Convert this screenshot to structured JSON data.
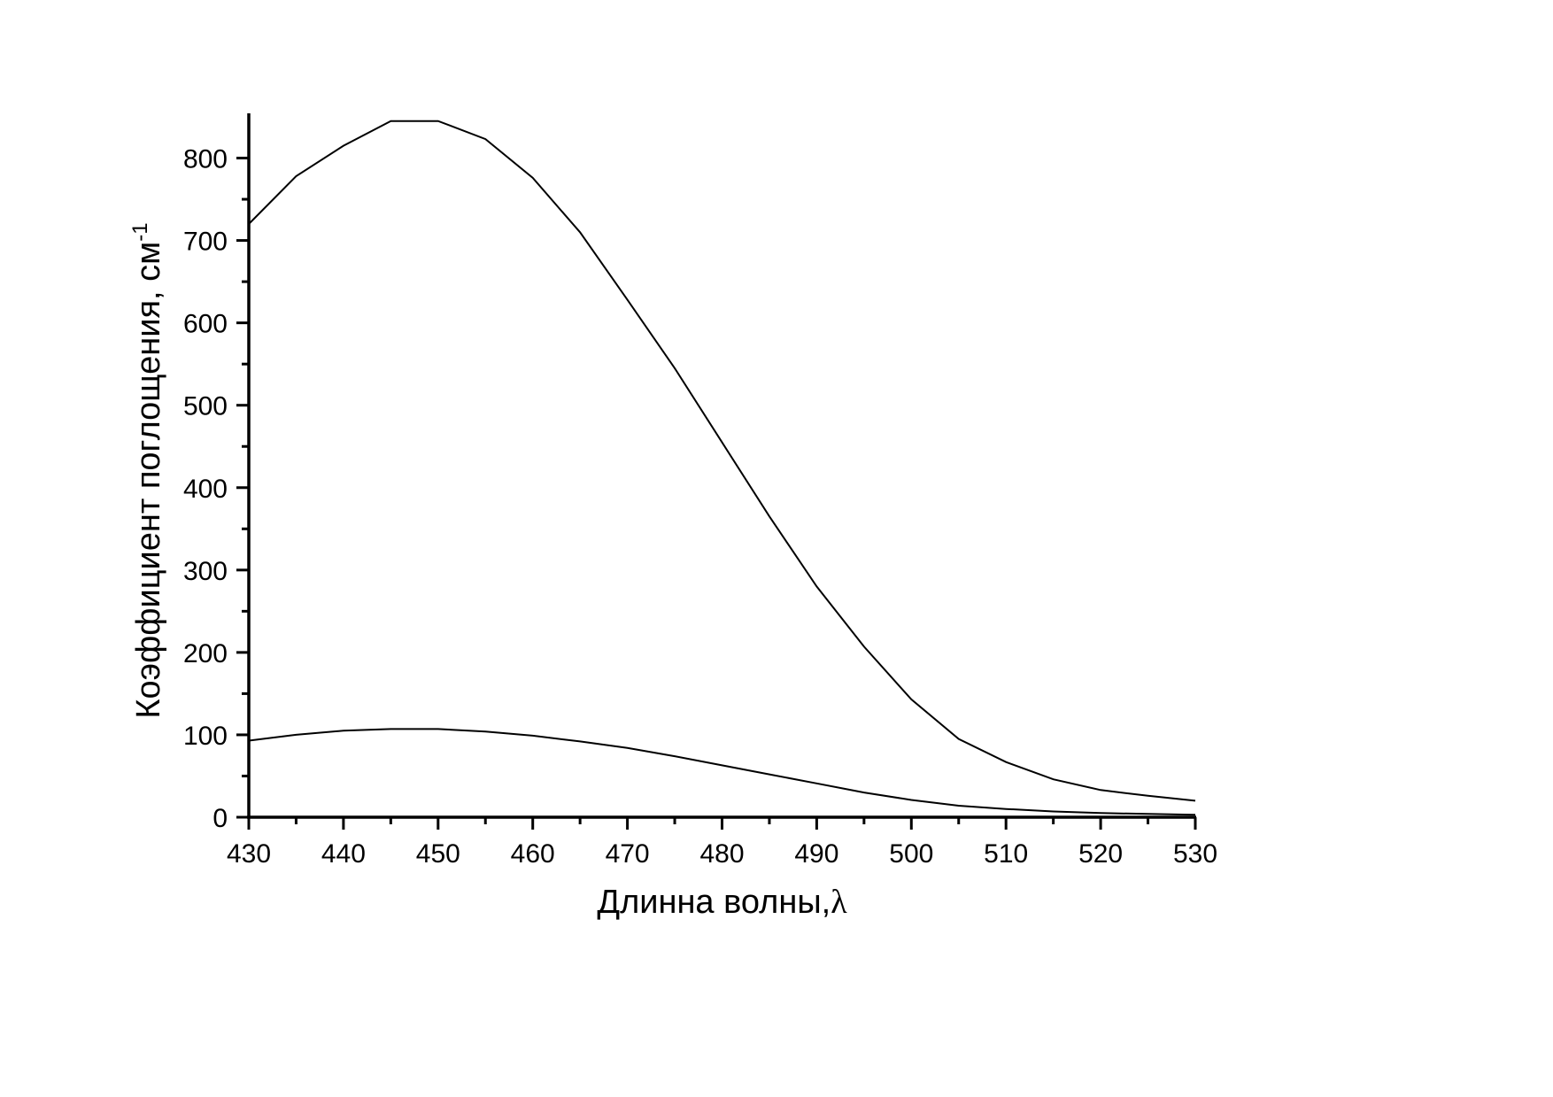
{
  "chart_data": {
    "type": "line",
    "title": "",
    "xlabel": "Длинна волны,",
    "xlabel_symbol": "λ",
    "ylabel": "Коэффициент поглощения, см",
    "ylabel_superscript": "-1",
    "xlim": [
      430,
      530
    ],
    "ylim": [
      0,
      850
    ],
    "x_ticks": [
      430,
      440,
      450,
      460,
      470,
      480,
      490,
      500,
      510,
      520,
      530
    ],
    "y_ticks": [
      0,
      100,
      200,
      300,
      400,
      500,
      600,
      700,
      800
    ],
    "x_tick_labels": [
      "430",
      "440",
      "450",
      "460",
      "470",
      "480",
      "490",
      "500",
      "510",
      "520",
      "530"
    ],
    "y_tick_labels": [
      "0",
      "100",
      "200",
      "300",
      "400",
      "500",
      "600",
      "700",
      "800"
    ],
    "grid": false,
    "legend": "none",
    "x": [
      430,
      435,
      440,
      445,
      450,
      455,
      460,
      465,
      470,
      475,
      480,
      485,
      490,
      495,
      500,
      505,
      510,
      515,
      520,
      525,
      530
    ],
    "series": [
      {
        "values": [
          720,
          778,
          815,
          845,
          845,
          823,
          776,
          710,
          628,
          545,
          455,
          365,
          280,
          207,
          143,
          95,
          67,
          46,
          33,
          26,
          20
        ]
      },
      {
        "values": [
          93,
          100,
          105,
          107,
          107,
          104,
          99,
          92,
          84,
          74,
          63,
          52,
          41,
          30,
          21,
          14,
          10,
          7,
          5,
          4,
          3
        ]
      }
    ]
  }
}
